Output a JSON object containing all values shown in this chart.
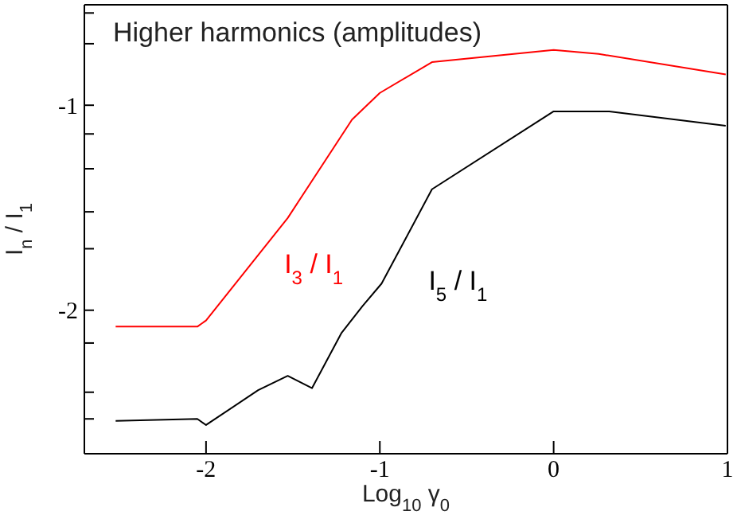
{
  "chart_data": {
    "type": "line",
    "title": "Higher harmonics (amplitudes)",
    "xlabel": "Log$_{10}$ γ$_{0}$",
    "ylabel": "I$_{n}$ / I$_{1}$",
    "xlim": [
      -2.7,
      1
    ],
    "xticks": [
      -2,
      -1,
      0,
      1
    ],
    "ylim": [
      -2.7,
      -0.51
    ],
    "yticks": [
      {
        "value": -2.53,
        "label": null
      },
      {
        "value": -2.4,
        "label": null
      },
      {
        "value": -2.16,
        "label": null
      },
      -2,
      {
        "value": -1.7,
        "label": null
      },
      {
        "value": -1.52,
        "label": null
      },
      {
        "value": -1.31,
        "label": null
      },
      {
        "value": -1.14,
        "label": null
      },
      -1,
      {
        "value": -0.7,
        "label": null
      },
      {
        "value": -0.55,
        "label": null
      }
    ],
    "grid": false,
    "marker": "none",
    "line_style": "solid",
    "series": [
      {
        "name": "I$_{3}$ / I$_{1}$",
        "color": "#ff0000",
        "x": [
          -2.52,
          -2.05,
          -2.0,
          -1.53,
          -1.16,
          -1.0,
          -0.7,
          0,
          0.26,
          0.99
        ],
        "values": [
          -2.08,
          -2.08,
          -2.05,
          -1.55,
          -1.07,
          -0.94,
          -0.79,
          -0.73,
          -0.75,
          -0.85
        ]
      },
      {
        "name": "I$_{5}$ / I$_{1}$",
        "color": "#000000",
        "x": [
          -2.52,
          -2.05,
          -2.0,
          -1.7,
          -1.53,
          -1.39,
          -1.22,
          -1.1,
          -0.99,
          -0.7,
          0,
          0.32,
          0.99
        ],
        "values": [
          -2.54,
          -2.53,
          -2.56,
          -2.39,
          -2.32,
          -2.38,
          -2.11,
          -1.98,
          -1.87,
          -1.41,
          -1.03,
          -1.03,
          -1.1
        ]
      }
    ]
  }
}
